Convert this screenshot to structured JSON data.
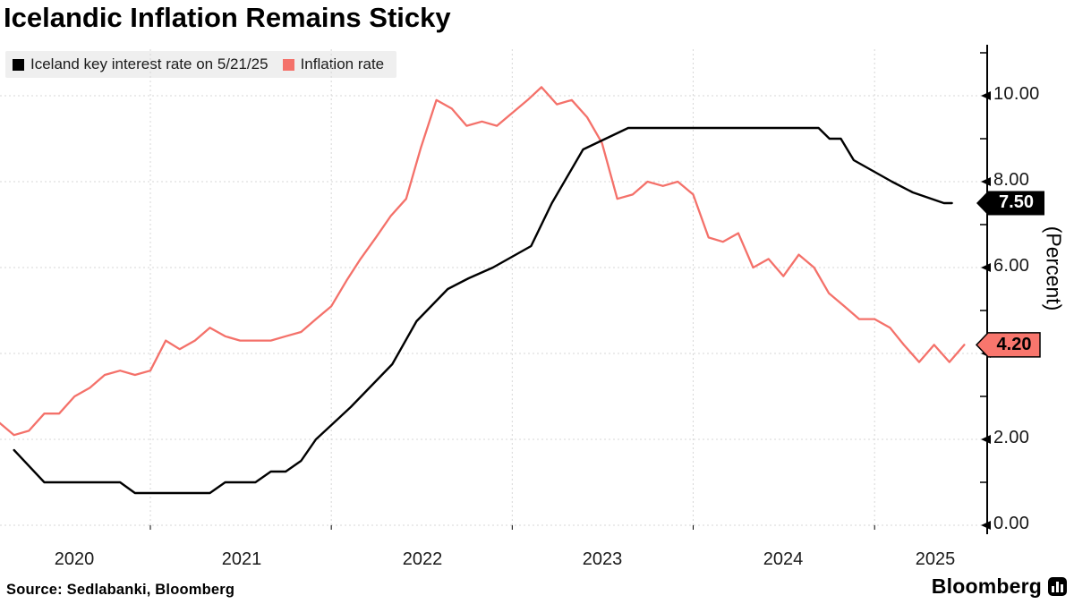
{
  "title": "Icelandic Inflation Remains Sticky",
  "source_note": "Source: Sedlabanki, Bloomberg",
  "brand": {
    "name": "Bloomberg"
  },
  "colors": {
    "interest_rate_line": "#000000",
    "inflation_line": "#f4716a",
    "inflation_badge_bg": "#f8766d",
    "rate_badge_bg": "#000000",
    "grid": "#d7d7d7",
    "legend_bg": "#efefef"
  },
  "legend": {
    "items": [
      {
        "label": "Iceland key interest rate on 5/21/25",
        "color": "#000000"
      },
      {
        "label": "Inflation rate",
        "color": "#f4716a"
      }
    ]
  },
  "y_axis": {
    "title": "(Percent)",
    "ticks": [
      {
        "label": "10.00",
        "value": 10
      },
      {
        "label": "8.00",
        "value": 8
      },
      {
        "label": "6.00",
        "value": 6
      },
      {
        "label": "4.00",
        "value": 4
      },
      {
        "label": "2.00",
        "value": 2
      },
      {
        "label": "0.00",
        "value": 0
      }
    ]
  },
  "x_axis": {
    "ticks": [
      {
        "label": "2020"
      },
      {
        "label": "2021"
      },
      {
        "label": "2022"
      },
      {
        "label": "2023"
      },
      {
        "label": "2024"
      },
      {
        "label": "2025"
      }
    ]
  },
  "badges": {
    "interest_rate": {
      "value": "7.50"
    },
    "inflation": {
      "value": "4.20"
    }
  },
  "chart_data": {
    "type": "line",
    "title": "Icelandic Inflation Remains Sticky",
    "xlabel": "",
    "ylabel": "(Percent)",
    "ylim": [
      0,
      11.3
    ],
    "x_range": [
      "2020-03",
      "2025-07"
    ],
    "grid": true,
    "legend_position": "top-left",
    "latest_labels": {
      "interest_rate": 7.5,
      "inflation": 4.2
    },
    "series": [
      {
        "name": "Iceland key interest rate on 5/21/25",
        "color": "#000000",
        "style": "policy-rate path with vertices at decision dates",
        "points": [
          [
            "2020-04-01",
            1.75
          ],
          [
            "2020-06-01",
            1.0
          ],
          [
            "2020-11-01",
            1.0
          ],
          [
            "2020-12-01",
            0.75
          ],
          [
            "2021-05-01",
            0.75
          ],
          [
            "2021-06-01",
            1.0
          ],
          [
            "2021-08-01",
            1.0
          ],
          [
            "2021-09-01",
            1.25
          ],
          [
            "2021-10-01",
            1.25
          ],
          [
            "2021-11-01",
            1.5
          ],
          [
            "2021-12-01",
            2.0
          ],
          [
            "2022-02-09",
            2.75
          ],
          [
            "2022-05-04",
            3.75
          ],
          [
            "2022-06-22",
            4.75
          ],
          [
            "2022-08-24",
            5.5
          ],
          [
            "2022-10-05",
            5.75
          ],
          [
            "2022-11-23",
            6.0
          ],
          [
            "2023-02-08",
            6.5
          ],
          [
            "2023-03-22",
            7.5
          ],
          [
            "2023-05-24",
            8.75
          ],
          [
            "2023-08-23",
            9.25
          ],
          [
            "2024-09-10",
            9.25
          ],
          [
            "2024-10-02",
            9.0
          ],
          [
            "2024-10-25",
            9.0
          ],
          [
            "2024-11-20",
            8.5
          ],
          [
            "2025-02-05",
            8.0
          ],
          [
            "2025-03-19",
            7.75
          ],
          [
            "2025-05-21",
            7.5
          ],
          [
            "2025-06-06",
            7.5
          ]
        ]
      },
      {
        "name": "Inflation rate",
        "color": "#f4716a",
        "style": "monthly CPI YoY, each month plotted at month end",
        "points": [
          [
            "2020-02",
            2.4
          ],
          [
            "2020-03",
            2.1
          ],
          [
            "2020-04",
            2.2
          ],
          [
            "2020-05",
            2.6
          ],
          [
            "2020-06",
            2.6
          ],
          [
            "2020-07",
            3.0
          ],
          [
            "2020-08",
            3.2
          ],
          [
            "2020-09",
            3.5
          ],
          [
            "2020-10",
            3.6
          ],
          [
            "2020-11",
            3.5
          ],
          [
            "2020-12",
            3.6
          ],
          [
            "2021-01",
            4.3
          ],
          [
            "2021-02",
            4.1
          ],
          [
            "2021-03",
            4.3
          ],
          [
            "2021-04",
            4.6
          ],
          [
            "2021-05",
            4.4
          ],
          [
            "2021-06",
            4.3
          ],
          [
            "2021-07",
            4.3
          ],
          [
            "2021-08",
            4.3
          ],
          [
            "2021-09",
            4.4
          ],
          [
            "2021-10",
            4.5
          ],
          [
            "2021-11",
            4.8
          ],
          [
            "2021-12",
            5.1
          ],
          [
            "2022-01",
            5.7
          ],
          [
            "2022-02",
            6.2
          ],
          [
            "2022-03",
            6.7
          ],
          [
            "2022-04",
            7.2
          ],
          [
            "2022-05",
            7.6
          ],
          [
            "2022-06",
            8.8
          ],
          [
            "2022-07",
            9.9
          ],
          [
            "2022-08",
            9.7
          ],
          [
            "2022-09",
            9.3
          ],
          [
            "2022-10",
            9.4
          ],
          [
            "2022-11",
            9.3
          ],
          [
            "2022-12",
            9.6
          ],
          [
            "2023-01",
            9.9
          ],
          [
            "2023-02",
            10.2
          ],
          [
            "2023-03",
            9.8
          ],
          [
            "2023-04",
            9.9
          ],
          [
            "2023-05",
            9.5
          ],
          [
            "2023-06",
            8.9
          ],
          [
            "2023-07",
            7.6
          ],
          [
            "2023-08",
            7.7
          ],
          [
            "2023-09",
            8.0
          ],
          [
            "2023-10",
            7.9
          ],
          [
            "2023-11",
            8.0
          ],
          [
            "2023-12",
            7.7
          ],
          [
            "2024-01",
            6.7
          ],
          [
            "2024-02",
            6.6
          ],
          [
            "2024-03",
            6.8
          ],
          [
            "2024-04",
            6.0
          ],
          [
            "2024-05",
            6.2
          ],
          [
            "2024-06",
            5.8
          ],
          [
            "2024-07",
            6.3
          ],
          [
            "2024-08",
            6.0
          ],
          [
            "2024-09",
            5.4
          ],
          [
            "2024-10",
            5.1
          ],
          [
            "2024-11",
            4.8
          ],
          [
            "2024-12",
            4.8
          ],
          [
            "2025-01",
            4.6
          ],
          [
            "2025-02",
            4.2
          ],
          [
            "2025-03",
            3.8
          ],
          [
            "2025-04",
            4.2
          ],
          [
            "2025-05",
            3.8
          ],
          [
            "2025-06",
            4.2
          ]
        ]
      }
    ]
  }
}
